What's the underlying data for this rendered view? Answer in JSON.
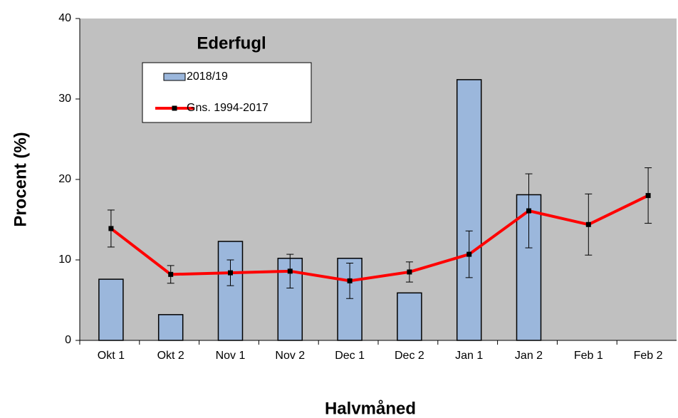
{
  "chart_data": {
    "type": "bar_line",
    "title": "Ederfugl",
    "x_label": "Halvmåned",
    "y_label": "Procent (%)",
    "categories": [
      "Okt 1",
      "Okt 2",
      "Nov 1",
      "Nov 2",
      "Dec 1",
      "Dec 2",
      "Jan 1",
      "Jan 2",
      "Feb 1",
      "Feb 2"
    ],
    "series": [
      {
        "name": "2018/19",
        "type": "bar",
        "color": "#9bb7dc",
        "values": [
          7.6,
          3.2,
          12.3,
          10.2,
          10.2,
          5.9,
          32.4,
          18.1,
          null,
          null
        ]
      },
      {
        "name": "Gns. 1994-2017",
        "type": "line",
        "color": "#ff0000",
        "values": [
          13.9,
          8.2,
          8.4,
          8.6,
          7.4,
          8.5,
          10.7,
          16.1,
          14.4,
          18.0
        ],
        "errors": [
          2.3,
          1.1,
          1.6,
          2.1,
          2.2,
          1.25,
          2.9,
          4.6,
          3.8,
          3.45
        ]
      }
    ],
    "ylim": [
      0,
      40
    ],
    "yticks": [
      0,
      10,
      20,
      30,
      40
    ]
  }
}
